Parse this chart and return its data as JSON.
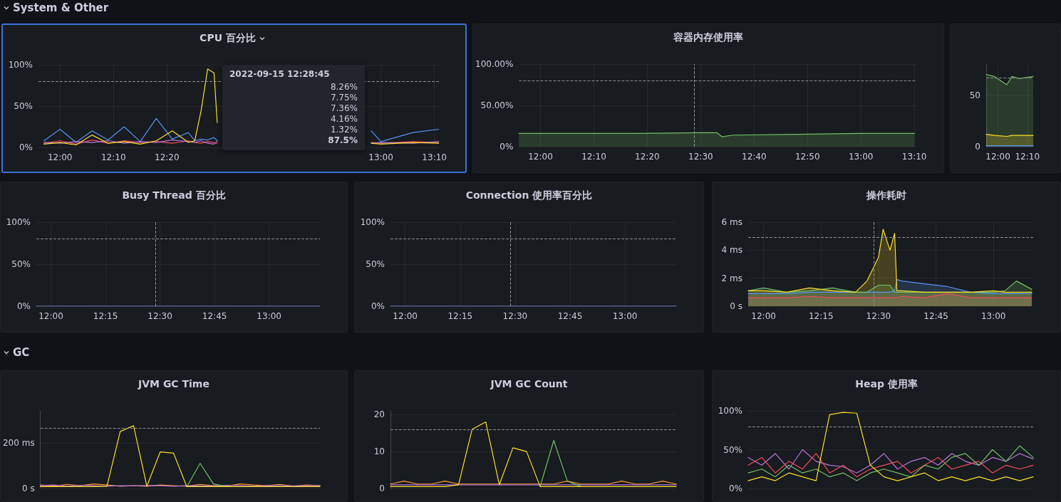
{
  "chart_data": [
    {
      "type": "other",
      "title": "System & Other"
    },
    {
      "type": "line",
      "title": "CPU 百分比",
      "x": [
        11.95,
        12.0,
        12.05,
        12.1,
        12.15,
        12.2,
        12.25,
        12.3,
        12.35,
        12.4,
        12.42,
        12.44,
        12.46,
        12.48,
        12.49,
        12.7,
        12.97,
        13.0,
        13.1,
        13.18
      ],
      "xlim": [
        11.933,
        13.183
      ],
      "xticks": [
        {
          "value": 12,
          "label": "12:00"
        },
        {
          "value": 12.1667,
          "label": "12:10"
        },
        {
          "value": 12.3333,
          "label": "12:20"
        },
        {
          "value": 13,
          "label": "13:00"
        },
        {
          "value": 13.1667,
          "label": "13:10"
        }
      ],
      "ylim": [
        0,
        100
      ],
      "yticks": [
        {
          "value": 0,
          "label": "0%"
        },
        {
          "value": 50,
          "label": "50%"
        },
        {
          "value": 100,
          "label": "100%"
        }
      ],
      "series": [
        {
          "color": "#5794f2",
          "values": [
            8,
            22,
            6,
            20,
            9,
            25,
            7,
            35,
            10,
            18,
            8,
            10,
            9,
            12,
            8,
            null,
            20,
            7,
            18,
            22
          ]
        },
        {
          "color": "#f2495c",
          "values": [
            5,
            8,
            4,
            9,
            5,
            8,
            6,
            7,
            5,
            8,
            6,
            5,
            7,
            6,
            5,
            null,
            6,
            5,
            7,
            6
          ]
        },
        {
          "color": "#b877d9",
          "values": [
            6,
            5,
            7,
            6,
            8,
            5,
            7,
            6,
            9,
            7,
            6,
            8,
            5,
            4,
            7,
            null,
            5,
            6,
            5,
            7
          ]
        },
        {
          "color": "#fade2a",
          "values": [
            4,
            6,
            3,
            15,
            5,
            7,
            4,
            8,
            20,
            6,
            8,
            45,
            95,
            90,
            30,
            null,
            5,
            4,
            6,
            5
          ]
        }
      ],
      "ref_lines": [
        {
          "axis": "y",
          "value": 80,
          "color": "#8e8e8e",
          "line_style": "dashed"
        }
      ],
      "annotations": [
        "2022-09-15 12:28:45",
        "8.26%",
        "7.75%",
        "7.36%",
        "4.16%",
        "1.32%",
        "87.5%"
      ],
      "grid": true,
      "marker": "none",
      "line_style": "solid"
    },
    {
      "type": "area",
      "title": "容器内存使用率",
      "x": [
        11.933,
        12.3,
        12.5,
        12.55,
        12.567,
        12.6,
        12.8,
        13.0,
        13.167
      ],
      "xlim": [
        11.933,
        13.173
      ],
      "xticks": [
        {
          "value": 12,
          "label": "12:00"
        },
        {
          "value": 12.1667,
          "label": "12:10"
        },
        {
          "value": 12.3333,
          "label": "12:20"
        },
        {
          "value": 12.5,
          "label": "12:30"
        },
        {
          "value": 12.6667,
          "label": "12:40"
        },
        {
          "value": 12.8333,
          "label": "12:50"
        },
        {
          "value": 13,
          "label": "13:00"
        },
        {
          "value": 13.1667,
          "label": "13:10"
        }
      ],
      "ylim": [
        0,
        100
      ],
      "yticks": [
        {
          "value": 0,
          "label": "0%"
        },
        {
          "value": 50,
          "label": "50.00%"
        },
        {
          "value": 100,
          "label": "100.00%"
        }
      ],
      "series": [
        {
          "color": "#73bf69",
          "values": [
            16,
            16,
            17,
            17,
            12,
            14,
            15,
            16,
            16
          ]
        }
      ],
      "ref_lines": [
        {
          "axis": "y",
          "value": 80,
          "color": "#8e8e8e",
          "line_style": "dashed"
        },
        {
          "axis": "x",
          "value": 12.48,
          "color": "#8e8e8e",
          "line_style": "dashed"
        }
      ],
      "grid": true,
      "marker": "none",
      "line_style": "solid"
    },
    {
      "type": "area",
      "x": [
        11.933,
        11.98,
        12.05,
        12.08,
        12.12,
        12.2
      ],
      "xlim": [
        11.933,
        12.2
      ],
      "xticks": [
        {
          "value": 12,
          "label": "12:00"
        },
        {
          "value": 12.1667,
          "label": "12:10"
        }
      ],
      "ylim": [
        0,
        80
      ],
      "yticks": [
        0,
        50
      ],
      "series": [
        {
          "color": "#73bf69",
          "values": [
            70,
            68,
            60,
            68,
            66,
            68
          ]
        },
        {
          "color": "#fade2a",
          "values": [
            12,
            11,
            10,
            11,
            11,
            11
          ]
        },
        {
          "color": "#5794f2",
          "values": [
            1,
            1,
            1,
            1,
            1,
            1
          ]
        }
      ],
      "ref_lines": [
        {
          "axis": "y",
          "value": 67,
          "color": "#8e8e8e",
          "line_style": "dashed"
        }
      ],
      "grid": true,
      "marker": "none",
      "line_style": "solid"
    },
    {
      "type": "line",
      "title": "Busy Thread 百分比",
      "x": [
        11.933,
        12.5,
        13.233
      ],
      "xlim": [
        11.933,
        13.233
      ],
      "xticks": [
        {
          "value": 12,
          "label": "12:00"
        },
        {
          "value": 12.25,
          "label": "12:15"
        },
        {
          "value": 12.5,
          "label": "12:30"
        },
        {
          "value": 12.75,
          "label": "12:45"
        },
        {
          "value": 13,
          "label": "13:00"
        }
      ],
      "ylim": [
        0,
        100
      ],
      "yticks": [
        {
          "value": 0,
          "label": "0%"
        },
        {
          "value": 50,
          "label": "50%"
        },
        {
          "value": 100,
          "label": "100%"
        }
      ],
      "series": [
        {
          "color": "#8f8fe0",
          "values": [
            0,
            0,
            0
          ]
        }
      ],
      "ref_lines": [
        {
          "axis": "y",
          "value": 80,
          "color": "#8e8e8e",
          "line_style": "dashed"
        },
        {
          "axis": "x",
          "value": 12.48,
          "color": "#8e8e8e",
          "line_style": "dashed"
        }
      ],
      "grid": true,
      "marker": "none",
      "line_style": "solid"
    },
    {
      "type": "line",
      "title": "Connection 使用率百分比",
      "x": [
        11.933,
        12.5,
        13.233
      ],
      "xlim": [
        11.933,
        13.233
      ],
      "xticks": [
        {
          "value": 12,
          "label": "12:00"
        },
        {
          "value": 12.25,
          "label": "12:15"
        },
        {
          "value": 12.5,
          "label": "12:30"
        },
        {
          "value": 12.75,
          "label": "12:45"
        },
        {
          "value": 13,
          "label": "13:00"
        }
      ],
      "ylim": [
        0,
        100
      ],
      "yticks": [
        {
          "value": 0,
          "label": "0%"
        },
        {
          "value": 50,
          "label": "50%"
        },
        {
          "value": 100,
          "label": "100%"
        }
      ],
      "series": [
        {
          "color": "#8f8fe0",
          "values": [
            0,
            0,
            0
          ]
        }
      ],
      "ref_lines": [
        {
          "axis": "y",
          "value": 80,
          "color": "#8e8e8e",
          "line_style": "dashed"
        },
        {
          "axis": "x",
          "value": 12.48,
          "color": "#8e8e8e",
          "line_style": "dashed"
        }
      ],
      "grid": true,
      "marker": "none",
      "line_style": "solid"
    },
    {
      "type": "area",
      "title": "操作耗时",
      "x": [
        11.933,
        12.0,
        12.1,
        12.2,
        12.3,
        12.4,
        12.45,
        12.5,
        12.52,
        12.55,
        12.57,
        12.58,
        12.6,
        12.7,
        12.8,
        12.9,
        13.0,
        13.05,
        13.1,
        13.167
      ],
      "xlim": [
        11.933,
        13.173
      ],
      "xticks": [
        {
          "value": 12,
          "label": "12:00"
        },
        {
          "value": 12.25,
          "label": "12:15"
        },
        {
          "value": 12.5,
          "label": "12:30"
        },
        {
          "value": 12.75,
          "label": "12:45"
        },
        {
          "value": 13,
          "label": "13:00"
        }
      ],
      "ylim": [
        0,
        6
      ],
      "yticks": [
        {
          "value": 0,
          "label": "0 s"
        },
        {
          "value": 2,
          "label": "2 ms"
        },
        {
          "value": 4,
          "label": "4 ms"
        },
        {
          "value": 6,
          "label": "6 ms"
        }
      ],
      "series": [
        {
          "color": "#f2495c",
          "values": [
            0.6,
            0.6,
            0.6,
            0.7,
            0.6,
            0.6,
            0.6,
            0.6,
            0.6,
            0.6,
            0.6,
            0.6,
            0.7,
            0.6,
            0.9,
            0.6,
            0.6,
            0.6,
            0.6,
            0.6
          ]
        },
        {
          "color": "#5794f2",
          "values": [
            0.9,
            0.9,
            0.9,
            1.0,
            1.0,
            1.0,
            1.0,
            1.0,
            1.0,
            1.0,
            1.1,
            1.9,
            1.8,
            1.6,
            1.4,
            1.0,
            0.9,
            0.9,
            0.9,
            0.9
          ]
        },
        {
          "color": "#73bf69",
          "values": [
            1.1,
            1.3,
            1.0,
            1.1,
            1.3,
            1.0,
            1.0,
            1.5,
            1.5,
            1.5,
            1.0,
            1.0,
            1.0,
            1.0,
            1.0,
            1.0,
            1.0,
            1.1,
            1.8,
            1.2
          ]
        },
        {
          "color": "#fade2a",
          "values": [
            1.1,
            1.1,
            1.0,
            1.3,
            1.1,
            1.0,
            1.8,
            3.5,
            5.5,
            4.0,
            5.2,
            1.1,
            1.1,
            1.0,
            1.0,
            1.0,
            1.1,
            1.0,
            1.0,
            1.0
          ]
        }
      ],
      "ref_lines": [
        {
          "axis": "y",
          "value": 4.9,
          "color": "#8e8e8e",
          "line_style": "dashed"
        },
        {
          "axis": "x",
          "value": 12.48,
          "color": "#8e8e8e",
          "line_style": "dashed"
        }
      ],
      "grid": true,
      "marker": "none",
      "line_style": "solid"
    },
    {
      "type": "other",
      "title": "GC"
    },
    {
      "type": "line",
      "title": "JVM GC Time",
      "categories": [
        null,
        null,
        null,
        null,
        null,
        null,
        null,
        null,
        null,
        null,
        null,
        null,
        null,
        null,
        null,
        null,
        null,
        null,
        null,
        null,
        null,
        null
      ],
      "ylim": [
        0,
        340
      ],
      "yticks": [
        {
          "value": 0,
          "label": "0 s"
        },
        {
          "value": 200,
          "label": "200 ms"
        }
      ],
      "series": [
        {
          "color": "#ff9830",
          "values": [
            15,
            10,
            18,
            12,
            20,
            15,
            10,
            12,
            10,
            15,
            12,
            10,
            18,
            12,
            10,
            20,
            15,
            12,
            18,
            10,
            15,
            12
          ]
        },
        {
          "color": "#b877d9",
          "values": [
            12,
            15,
            10,
            14,
            12,
            10,
            12,
            11,
            13,
            12,
            10,
            12,
            11,
            12,
            14,
            12,
            10,
            13,
            12,
            11,
            12,
            13
          ]
        },
        {
          "color": "#73bf69",
          "values": [
            null,
            null,
            null,
            null,
            null,
            null,
            null,
            null,
            null,
            null,
            null,
            8,
            110,
            20,
            8,
            null,
            null,
            null,
            null,
            null,
            null,
            null
          ]
        },
        {
          "color": "#fade2a",
          "values": [
            8,
            8,
            8,
            8,
            8,
            10,
            250,
            275,
            10,
            160,
            155,
            8,
            8,
            8,
            8,
            8,
            8,
            8,
            8,
            8,
            8,
            8
          ]
        }
      ],
      "ref_lines": [
        {
          "axis": "y",
          "value": 265,
          "color": "#8e8e8e",
          "line_style": "dashed"
        }
      ],
      "grid": "y",
      "marker": "none",
      "line_style": "solid",
      "tick_labels": "y"
    },
    {
      "type": "line",
      "title": "JVM GC Count",
      "categories": [
        null,
        null,
        null,
        null,
        null,
        null,
        null,
        null,
        null,
        null,
        null,
        null,
        null,
        null,
        null,
        null,
        null,
        null,
        null,
        null,
        null,
        null
      ],
      "ylim": [
        0,
        21
      ],
      "yticks": [
        0,
        10,
        20
      ],
      "series": [
        {
          "color": "#ff9830",
          "values": [
            1.2,
            2,
            1.2,
            1.2,
            2,
            1.2,
            1.2,
            1.2,
            1.2,
            1.2,
            1.2,
            1.2,
            1.2,
            2,
            1.2,
            1.2,
            1.2,
            2,
            1.2,
            1.2,
            2,
            1.2
          ]
        },
        {
          "color": "#b877d9",
          "values": [
            1,
            1,
            1,
            1,
            1,
            1,
            1,
            1,
            1,
            1,
            1,
            1,
            1,
            1,
            1,
            1,
            1,
            1,
            1,
            1,
            1,
            1
          ]
        },
        {
          "color": "#73bf69",
          "values": [
            null,
            null,
            null,
            null,
            null,
            null,
            null,
            null,
            null,
            null,
            null,
            0.5,
            13,
            2,
            0.5,
            null,
            null,
            null,
            null,
            null,
            null,
            null
          ]
        },
        {
          "color": "#fade2a",
          "values": [
            0.5,
            0.5,
            0.5,
            0.5,
            0.5,
            1,
            16,
            18,
            1,
            11,
            10,
            0.5,
            0.5,
            0.5,
            0.5,
            0.5,
            0.5,
            0.5,
            0.5,
            0.5,
            0.5,
            0.5
          ]
        }
      ],
      "ref_lines": [
        {
          "axis": "y",
          "value": 16,
          "color": "#8e8e8e",
          "line_style": "dashed"
        }
      ],
      "grid": "y",
      "marker": "none",
      "line_style": "solid",
      "tick_labels": "y"
    },
    {
      "type": "line",
      "title": "Heap 使用率",
      "categories": [
        null,
        null,
        null,
        null,
        null,
        null,
        null,
        null,
        null,
        null,
        null,
        null,
        null,
        null,
        null,
        null,
        null,
        null,
        null,
        null,
        null,
        null
      ],
      "ylim": [
        0,
        100
      ],
      "yticks": [
        {
          "value": 0,
          "label": "0%"
        },
        {
          "value": 50,
          "label": "50%"
        },
        {
          "value": 100,
          "label": "100%"
        }
      ],
      "series": [
        {
          "color": "#b877d9",
          "values": [
            40,
            30,
            45,
            25,
            50,
            35,
            30,
            28,
            20,
            30,
            45,
            25,
            35,
            40,
            30,
            45,
            35,
            30,
            40,
            35,
            45,
            38
          ]
        },
        {
          "color": "#f2495c",
          "values": [
            30,
            40,
            20,
            35,
            25,
            45,
            20,
            30,
            15,
            25,
            30,
            35,
            20,
            30,
            40,
            25,
            30,
            35,
            20,
            30,
            25,
            30
          ]
        },
        {
          "color": "#73bf69",
          "values": [
            20,
            25,
            15,
            30,
            20,
            25,
            15,
            20,
            10,
            20,
            25,
            20,
            15,
            30,
            25,
            40,
            45,
            30,
            50,
            35,
            55,
            40
          ]
        },
        {
          "color": "#fade2a",
          "values": [
            10,
            15,
            10,
            20,
            15,
            10,
            95,
            98,
            97,
            30,
            15,
            10,
            15,
            20,
            10,
            15,
            10,
            15,
            10,
            15,
            10,
            15
          ]
        }
      ],
      "ref_lines": [
        {
          "axis": "y",
          "value": 80,
          "color": "#8e8e8e",
          "line_style": "dashed"
        }
      ],
      "grid": "y",
      "marker": "none",
      "line_style": "solid",
      "tick_labels": "y"
    }
  ]
}
